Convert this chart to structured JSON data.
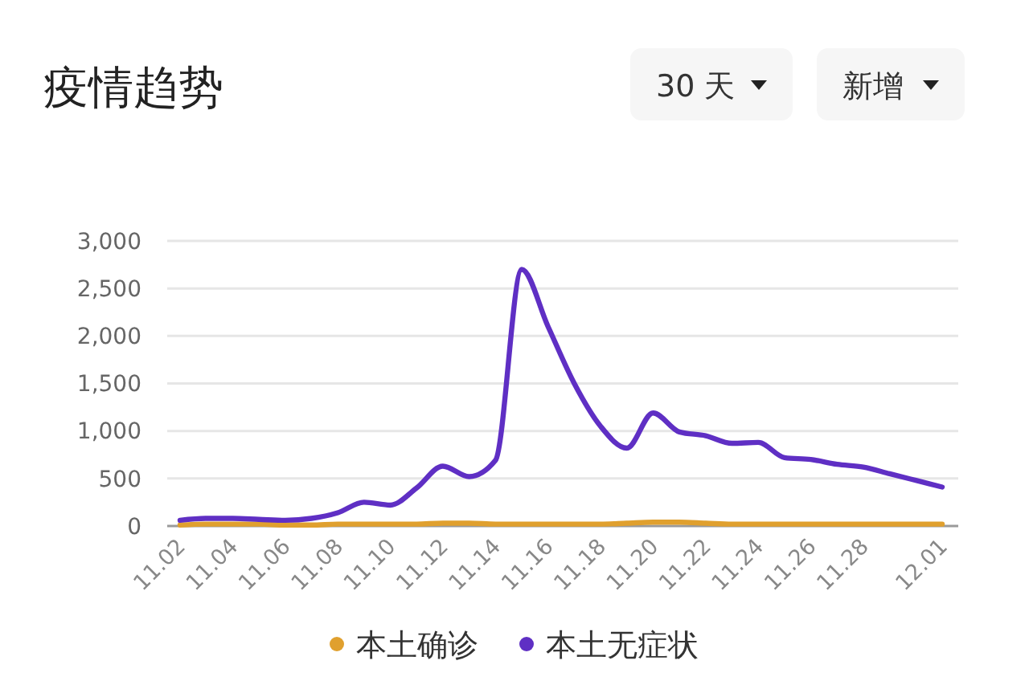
{
  "chart_data": {
    "type": "line",
    "title": "疫情趋势",
    "annotations": [
      "30 天",
      "新增"
    ],
    "categories": [
      "11.02",
      null,
      "11.04",
      null,
      "11.06",
      null,
      "11.08",
      null,
      "11.10",
      null,
      "11.12",
      null,
      "11.14",
      null,
      "11.16",
      null,
      "11.18",
      null,
      "11.20",
      null,
      "11.22",
      null,
      "11.24",
      null,
      "11.26",
      null,
      "11.28",
      null,
      null,
      "12.01"
    ],
    "series": [
      {
        "name": "本土确诊",
        "color": "#e0a02e",
        "values": [
          10,
          20,
          20,
          20,
          10,
          10,
          20,
          20,
          20,
          20,
          30,
          30,
          20,
          20,
          20,
          20,
          20,
          30,
          40,
          40,
          30,
          20,
          20,
          20,
          20,
          20,
          20,
          20,
          20,
          20
        ]
      },
      {
        "name": "本土无症状",
        "color": "#5f2fc4",
        "values": [
          60,
          80,
          80,
          70,
          60,
          80,
          140,
          250,
          220,
          400,
          630,
          520,
          690,
          2700,
          2100,
          1500,
          1050,
          820,
          1190,
          990,
          950,
          870,
          880,
          720,
          700,
          650,
          620,
          550,
          480,
          410
        ]
      }
    ],
    "ylim": [
      0,
      3000
    ],
    "yticks": [
      0,
      500,
      {
        "value": 1000,
        "label": "1,000"
      },
      {
        "value": 1500,
        "label": "1,500"
      },
      {
        "value": 2000,
        "label": "2,000"
      },
      {
        "value": 2500,
        "label": "2,500"
      },
      {
        "value": 3000,
        "label": "3,000"
      }
    ],
    "grid": "y",
    "legend": "bottom"
  }
}
